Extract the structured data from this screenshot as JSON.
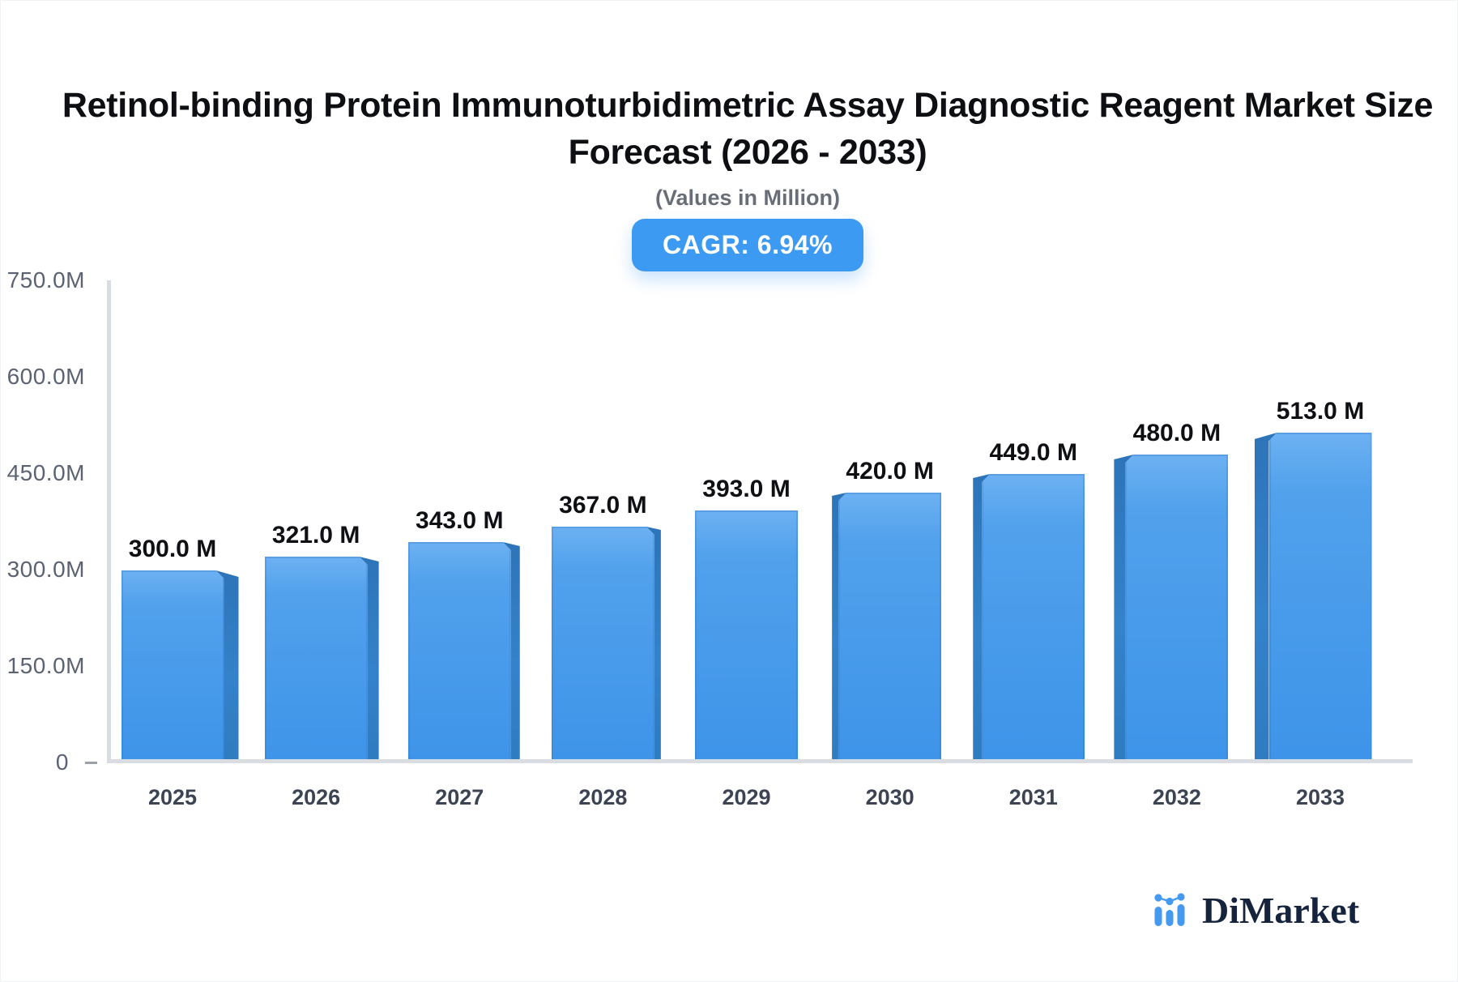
{
  "header": {
    "title_line1": "Retinol-binding Protein Immunoturbidimetric Assay Diagnostic Reagent Market Size",
    "title_line2": "Forecast (2026 - 2033)",
    "subtitle": "(Values in Million)",
    "cagr_badge": "CAGR: 6.94%"
  },
  "chart_data": {
    "type": "bar",
    "title": "Retinol-binding Protein Immunoturbidimetric Assay Diagnostic Reagent Market Size Forecast (2026 - 2033)",
    "subtitle": "(Values in Million)",
    "annotation": "CAGR: 6.94%",
    "categories": [
      "2025",
      "2026",
      "2027",
      "2028",
      "2029",
      "2030",
      "2031",
      "2032",
      "2033"
    ],
    "values": [
      300,
      321,
      343,
      367,
      393,
      420,
      449,
      480,
      513
    ],
    "value_labels": [
      "300.0 M",
      "321.0 M",
      "343.0 M",
      "367.0 M",
      "393.0 M",
      "420.0 M",
      "449.0 M",
      "480.0 M",
      "513.0 M"
    ],
    "y_ticks": [
      "750.0M",
      "600.0M",
      "450.0M",
      "300.0M",
      "150.0M",
      "0"
    ],
    "ylim": [
      0,
      750
    ],
    "xlabel": "",
    "ylabel": "",
    "grid": false,
    "legend_position": "none",
    "bar_style": "3d-perspective-center",
    "bar_front_color": "#479AEB",
    "bar_side_color": "#2E78BF",
    "accent_color": "#3D9AF3",
    "axis_color": "#D9DCE1"
  },
  "footer": {
    "brand": "DiMarket",
    "logo_icon": "mini-bar-chart-with-dots",
    "logo_color": "#459AF0",
    "brand_text_color": "#16233D"
  }
}
